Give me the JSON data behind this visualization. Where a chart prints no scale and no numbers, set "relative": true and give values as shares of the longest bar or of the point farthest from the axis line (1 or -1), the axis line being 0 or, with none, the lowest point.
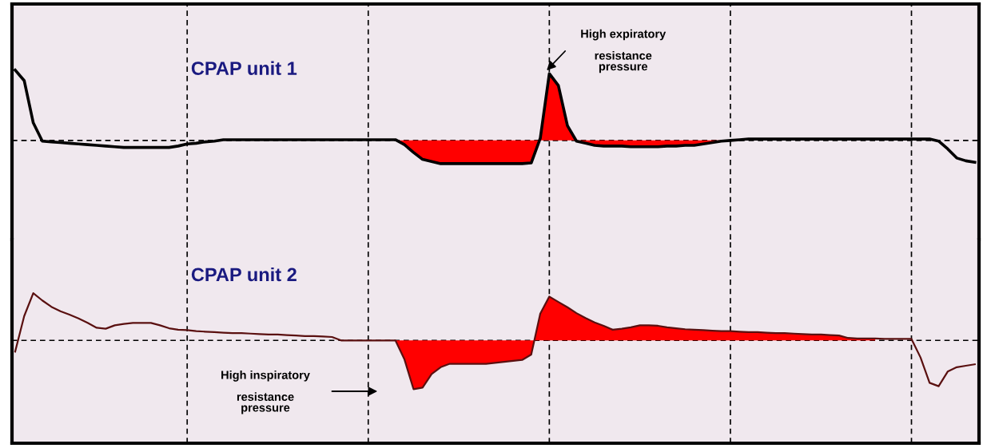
{
  "chart_data": [
    {
      "type": "line",
      "relative": true,
      "title": "CPAP unit 1",
      "grid": "x",
      "line_style": "solid",
      "categories": [
        null,
        null,
        null,
        null,
        null,
        null,
        null,
        null,
        null,
        null,
        null,
        null,
        null,
        null,
        null,
        null,
        null,
        null,
        null,
        null,
        null,
        null,
        null,
        null,
        null,
        null,
        null,
        null,
        null,
        null,
        null,
        null,
        null,
        null,
        null,
        null,
        null,
        null,
        null,
        null,
        null,
        null,
        null,
        null,
        null,
        null,
        null,
        null,
        null,
        null,
        null,
        null,
        null,
        null,
        null,
        null,
        null,
        null,
        null,
        null,
        null,
        null,
        null,
        null,
        null,
        null,
        null,
        null,
        null,
        null,
        null,
        null,
        null,
        null,
        null,
        null,
        null,
        null,
        null,
        null,
        null,
        null,
        null,
        null,
        null,
        null,
        null,
        null,
        null,
        null,
        null,
        null,
        null,
        null,
        null,
        null,
        null,
        null,
        null,
        null,
        null,
        null,
        null,
        null,
        null,
        null,
        null
      ],
      "series": [
        {
          "type": "line",
          "color": "#000000",
          "values": [
            1.0,
            0.85,
            0.25,
            -0.01,
            -0.02,
            -0.03,
            -0.04,
            -0.05,
            -0.06,
            -0.07,
            -0.08,
            -0.09,
            -0.1,
            -0.1,
            -0.1,
            -0.1,
            -0.1,
            -0.1,
            -0.08,
            -0.05,
            -0.04,
            -0.02,
            -0.01,
            0.01,
            0.01,
            0.01,
            0.01,
            0.01,
            0.01,
            0.01,
            0.01,
            0.01,
            0.01,
            0.01,
            0.01,
            0.01,
            0.01,
            0.01,
            0.01,
            0.01,
            0.01,
            0.01,
            0.01,
            -0.06,
            -0.17,
            -0.27,
            -0.3,
            -0.33,
            -0.33,
            -0.33,
            -0.33,
            -0.33,
            -0.33,
            -0.33,
            -0.33,
            -0.33,
            -0.33,
            -0.32,
            0.03,
            0.95,
            0.78,
            0.21,
            -0.01,
            -0.04,
            -0.07,
            -0.08,
            -0.08,
            -0.08,
            -0.09,
            -0.09,
            -0.09,
            -0.09,
            -0.08,
            -0.08,
            -0.07,
            -0.07,
            -0.05,
            -0.03,
            -0.01,
            0.0,
            0.01,
            0.02,
            0.02,
            0.02,
            0.02,
            0.02,
            0.02,
            0.02,
            0.02,
            0.02,
            0.02,
            0.02,
            0.02,
            0.02,
            0.02,
            0.02,
            0.02,
            0.02,
            0.02,
            0.02,
            0.02,
            0.02,
            -0.01,
            -0.12,
            -0.25,
            -0.29,
            -0.31
          ]
        },
        {
          "type": "area",
          "color": "#ff0000",
          "values": [
            null,
            null,
            null,
            null,
            null,
            null,
            null,
            null,
            null,
            null,
            null,
            null,
            null,
            null,
            null,
            null,
            null,
            null,
            null,
            null,
            null,
            null,
            null,
            null,
            null,
            null,
            null,
            null,
            null,
            null,
            null,
            null,
            null,
            null,
            null,
            null,
            null,
            null,
            null,
            null,
            null,
            null,
            0.01,
            -0.06,
            -0.17,
            -0.27,
            -0.3,
            -0.33,
            -0.33,
            -0.33,
            -0.33,
            -0.33,
            -0.33,
            -0.33,
            -0.33,
            -0.33,
            -0.33,
            -0.32,
            0.03,
            0.95,
            0.78,
            0.21,
            -0.01,
            -0.04,
            -0.07,
            -0.08,
            -0.08,
            -0.08,
            -0.09,
            -0.09,
            -0.09,
            -0.09,
            -0.08,
            -0.08,
            -0.07,
            -0.07,
            -0.05,
            -0.03,
            -0.01,
            0.0,
            null,
            null,
            null,
            null,
            null,
            null,
            null,
            null,
            null,
            null,
            null,
            null,
            null,
            null,
            null,
            null,
            null,
            null,
            null,
            null,
            null,
            null,
            null,
            null,
            null,
            null,
            null
          ]
        }
      ],
      "annotations": [
        "High expiratory\n\nresistance\npressure"
      ]
    },
    {
      "type": "line",
      "relative": true,
      "title": "CPAP unit 2",
      "grid": "x",
      "line_style": "solid",
      "categories": [
        null,
        null,
        null,
        null,
        null,
        null,
        null,
        null,
        null,
        null,
        null,
        null,
        null,
        null,
        null,
        null,
        null,
        null,
        null,
        null,
        null,
        null,
        null,
        null,
        null,
        null,
        null,
        null,
        null,
        null,
        null,
        null,
        null,
        null,
        null,
        null,
        null,
        null,
        null,
        null,
        null,
        null,
        null,
        null,
        null,
        null,
        null,
        null,
        null,
        null,
        null,
        null,
        null,
        null,
        null,
        null,
        null,
        null,
        null,
        null,
        null,
        null,
        null,
        null,
        null,
        null,
        null,
        null,
        null,
        null,
        null,
        null,
        null,
        null,
        null,
        null,
        null,
        null,
        null,
        null,
        null,
        null,
        null,
        null,
        null,
        null,
        null,
        null,
        null,
        null,
        null,
        null,
        null,
        null,
        null,
        null,
        null,
        null,
        null,
        null,
        null,
        null,
        null,
        null,
        null,
        null,
        null
      ],
      "series": [
        {
          "type": "line",
          "color": "#5a1010",
          "values": [
            -0.23,
            0.5,
            0.97,
            0.82,
            0.69,
            0.6,
            0.53,
            0.45,
            0.36,
            0.26,
            0.24,
            0.31,
            0.34,
            0.36,
            0.36,
            0.36,
            0.31,
            0.25,
            0.22,
            0.21,
            0.19,
            0.18,
            0.17,
            0.16,
            0.15,
            0.15,
            0.14,
            0.13,
            0.12,
            0.12,
            0.11,
            0.1,
            0.09,
            0.09,
            0.08,
            0.07,
            0.0,
            0.0,
            0.0,
            0.0,
            0.0,
            0.0,
            0.0,
            -0.39,
            -1.0,
            -0.97,
            -0.69,
            -0.55,
            -0.48,
            -0.48,
            -0.48,
            -0.48,
            -0.48,
            -0.46,
            -0.44,
            -0.42,
            -0.4,
            -0.29,
            0.55,
            0.9,
            0.79,
            0.68,
            0.56,
            0.46,
            0.37,
            0.3,
            0.22,
            0.24,
            0.27,
            0.31,
            0.31,
            0.3,
            0.27,
            0.25,
            0.23,
            0.22,
            0.21,
            0.2,
            0.19,
            0.19,
            0.18,
            0.17,
            0.17,
            0.16,
            0.15,
            0.15,
            0.14,
            0.13,
            0.12,
            0.12,
            0.11,
            0.1,
            0.05,
            0.04,
            0.04,
            0.04,
            0.03,
            0.03,
            0.03,
            0.03,
            -0.35,
            -0.87,
            -0.94,
            -0.64,
            -0.55,
            -0.52,
            -0.49
          ]
        },
        {
          "type": "area",
          "color": "#ff0000",
          "values": [
            null,
            null,
            null,
            null,
            null,
            null,
            null,
            null,
            null,
            null,
            null,
            null,
            null,
            null,
            null,
            null,
            null,
            null,
            null,
            null,
            null,
            null,
            null,
            null,
            null,
            null,
            null,
            null,
            null,
            null,
            null,
            null,
            null,
            null,
            null,
            null,
            null,
            null,
            null,
            null,
            null,
            null,
            0.0,
            -0.39,
            -1.0,
            -0.97,
            -0.69,
            -0.55,
            -0.48,
            -0.48,
            -0.48,
            -0.48,
            -0.48,
            -0.46,
            -0.44,
            -0.42,
            -0.4,
            -0.29,
            0.55,
            0.9,
            0.79,
            0.68,
            0.56,
            0.46,
            0.37,
            0.3,
            0.22,
            0.24,
            0.27,
            0.31,
            0.31,
            0.3,
            0.27,
            0.25,
            0.23,
            0.22,
            0.21,
            0.2,
            0.19,
            0.19,
            0.18,
            0.17,
            0.17,
            0.16,
            0.15,
            0.15,
            0.14,
            0.13,
            0.12,
            0.12,
            0.11,
            0.1,
            0.05,
            0.04,
            0.04,
            0.04,
            null,
            null,
            null,
            null,
            null,
            null,
            null,
            null,
            null,
            null,
            null
          ]
        }
      ],
      "annotations": [
        "High inspiratory\n\nresistance\npressure"
      ]
    }
  ]
}
